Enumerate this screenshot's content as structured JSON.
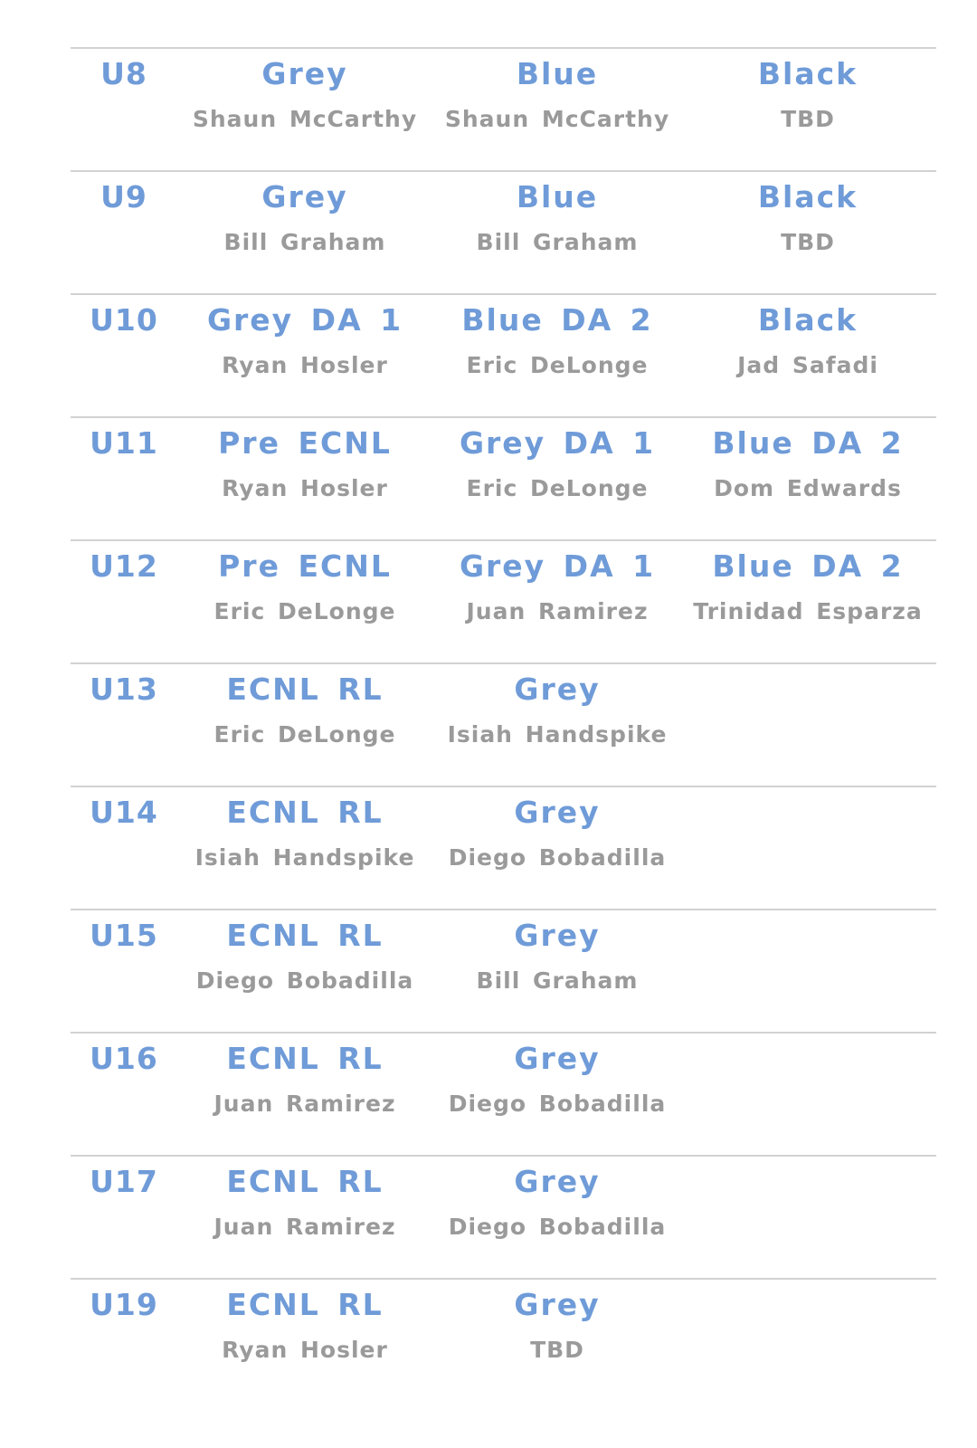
{
  "rows": [
    {
      "age": "U8",
      "teams": [
        {
          "name": "Grey",
          "coach": "Shaun McCarthy"
        },
        {
          "name": "Blue",
          "coach": "Shaun McCarthy"
        },
        {
          "name": "Black",
          "coach": "TBD"
        }
      ]
    },
    {
      "age": "U9",
      "teams": [
        {
          "name": "Grey",
          "coach": "Bill Graham"
        },
        {
          "name": "Blue",
          "coach": "Bill Graham"
        },
        {
          "name": "Black",
          "coach": "TBD"
        }
      ]
    },
    {
      "age": "U10",
      "teams": [
        {
          "name": "Grey DA 1",
          "coach": "Ryan Hosler"
        },
        {
          "name": "Blue DA 2",
          "coach": "Eric DeLonge"
        },
        {
          "name": "Black",
          "coach": "Jad Safadi"
        }
      ]
    },
    {
      "age": "U11",
      "teams": [
        {
          "name": "Pre ECNL",
          "coach": "Ryan Hosler"
        },
        {
          "name": "Grey DA 1",
          "coach": "Eric DeLonge"
        },
        {
          "name": "Blue DA 2",
          "coach": "Dom Edwards"
        }
      ]
    },
    {
      "age": "U12",
      "teams": [
        {
          "name": "Pre ECNL",
          "coach": "Eric DeLonge"
        },
        {
          "name": "Grey DA 1",
          "coach": "Juan Ramirez"
        },
        {
          "name": "Blue DA 2",
          "coach": "Trinidad Esparza"
        }
      ]
    },
    {
      "age": "U13",
      "teams": [
        {
          "name": "ECNL RL",
          "coach": "Eric DeLonge"
        },
        {
          "name": "Grey",
          "coach": "Isiah Handspike"
        }
      ]
    },
    {
      "age": "U14",
      "teams": [
        {
          "name": "ECNL RL",
          "coach": "Isiah Handspike"
        },
        {
          "name": "Grey",
          "coach": "Diego Bobadilla"
        }
      ]
    },
    {
      "age": "U15",
      "teams": [
        {
          "name": "ECNL RL",
          "coach": "Diego Bobadilla"
        },
        {
          "name": "Grey",
          "coach": "Bill Graham"
        }
      ]
    },
    {
      "age": "U16",
      "teams": [
        {
          "name": "ECNL RL",
          "coach": "Juan Ramirez"
        },
        {
          "name": "Grey",
          "coach": "Diego Bobadilla"
        }
      ]
    },
    {
      "age": "U17",
      "teams": [
        {
          "name": "ECNL RL",
          "coach": "Juan Ramirez"
        },
        {
          "name": "Grey",
          "coach": "Diego Bobadilla"
        }
      ]
    },
    {
      "age": "U19",
      "teams": [
        {
          "name": "ECNL RL",
          "coach": "Ryan Hosler"
        },
        {
          "name": "Grey",
          "coach": "TBD"
        }
      ]
    }
  ],
  "colors": {
    "team_name": "#6f9bd8",
    "coach": "#9a9a9a",
    "divider": "#d2d2d2"
  }
}
